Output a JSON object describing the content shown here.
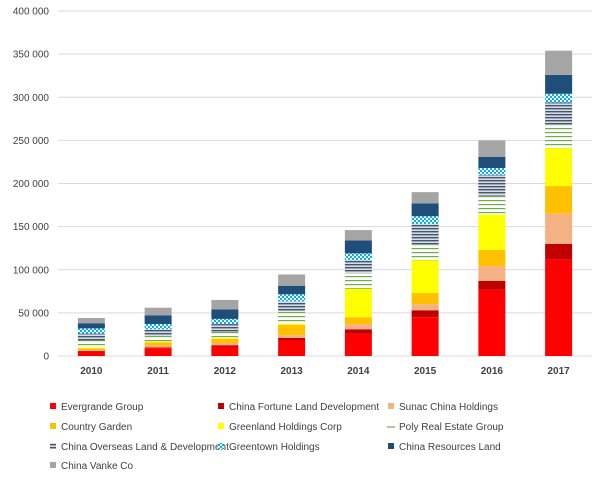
{
  "chart_data": {
    "type": "bar",
    "stacked": true,
    "categories": [
      "2010",
      "2011",
      "2012",
      "2013",
      "2014",
      "2015",
      "2016",
      "2017"
    ],
    "ylim": [
      0,
      400000
    ],
    "yticks": [
      0,
      50000,
      100000,
      150000,
      200000,
      250000,
      300000,
      350000,
      400000
    ],
    "ytick_labels": [
      "0",
      "50 000",
      "100 000",
      "150 000",
      "200 000",
      "250 000",
      "300 000",
      "350 000",
      "400 000"
    ],
    "grid": true,
    "legend_position": "bottom",
    "series": [
      {
        "name": "Evergrande Group",
        "color": "#ff0000",
        "pattern": "solid",
        "values": [
          5000,
          9000,
          11000,
          18000,
          26000,
          45000,
          77000,
          112000
        ]
      },
      {
        "name": "China Fortune Land Development",
        "color": "#c00000",
        "pattern": "solid",
        "values": [
          1000,
          1000,
          1500,
          3000,
          5000,
          8000,
          10000,
          18000
        ]
      },
      {
        "name": "Sunac China Holdings",
        "color": "#f4b183",
        "pattern": "solid",
        "values": [
          1000,
          2000,
          2500,
          3000,
          6000,
          7000,
          17000,
          35000
        ]
      },
      {
        "name": "Country Garden",
        "color": "#ffc000",
        "pattern": "solid",
        "values": [
          2000,
          4000,
          5000,
          12000,
          8000,
          13000,
          19000,
          32000
        ]
      },
      {
        "name": "Greenland Holdings Corp",
        "color": "#ffff00",
        "pattern": "solid",
        "values": [
          1000,
          1000,
          1000,
          1500,
          33000,
          38000,
          41000,
          44000
        ]
      },
      {
        "name": "Poly Real Estate Group",
        "color": "#70ad47",
        "pattern": "hstripe",
        "values": [
          8000,
          6000,
          7000,
          14000,
          18000,
          18000,
          22000,
          27000
        ]
      },
      {
        "name": "China Overseas Land & Development",
        "color": "#8497b0",
        "pattern": "hstripe-dense",
        "values": [
          8000,
          8000,
          9000,
          12000,
          15000,
          24000,
          24000,
          26000
        ]
      },
      {
        "name": "Greentown Holdings",
        "color": "#00b0f0",
        "pattern": "dots",
        "values": [
          6000,
          6000,
          6000,
          8000,
          8000,
          9000,
          8000,
          10000
        ]
      },
      {
        "name": "China Resources Land",
        "color": "#1f4e79",
        "pattern": "solid",
        "values": [
          6000,
          10000,
          11000,
          10000,
          15000,
          15000,
          13000,
          22000
        ]
      },
      {
        "name": "China Vanke Co",
        "color": "#a5a5a5",
        "pattern": "solid",
        "values": [
          6000,
          9000,
          11000,
          13000,
          12000,
          13000,
          19000,
          28000
        ]
      }
    ]
  }
}
